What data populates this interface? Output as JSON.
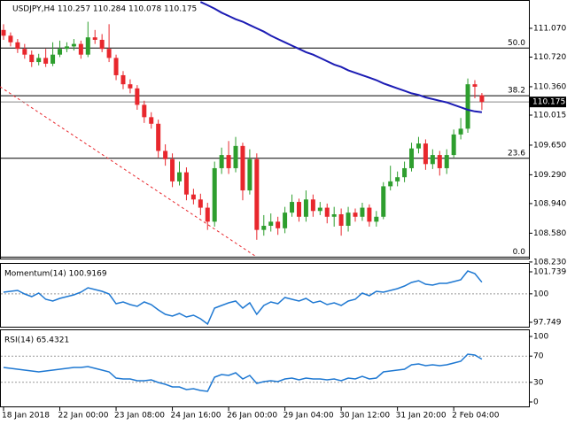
{
  "chart_data": [
    {
      "type": "candlestick",
      "title": "USDJPY,H4  110.257 110.284 110.078 110.175",
      "categories": [
        "18 Jan 2018",
        null,
        null,
        null,
        null,
        null,
        null,
        null,
        "22 Jan 00:00",
        null,
        null,
        null,
        null,
        null,
        null,
        null,
        "23 Jan 08:00",
        null,
        null,
        null,
        null,
        null,
        null,
        null,
        "24 Jan 16:00",
        null,
        null,
        null,
        null,
        null,
        null,
        null,
        "26 Jan 00:00",
        null,
        null,
        null,
        null,
        null,
        null,
        null,
        "29 Jan 04:00",
        null,
        null,
        null,
        null,
        null,
        null,
        null,
        "30 Jan 12:00",
        null,
        null,
        null,
        null,
        null,
        null,
        null,
        "31 Jan 20:00",
        null,
        null,
        null,
        null,
        null,
        null,
        null,
        "2 Feb 04:00",
        null,
        null,
        null,
        null
      ],
      "open": [
        111.05,
        110.98,
        110.9,
        110.82,
        110.75,
        110.66,
        110.71,
        110.64,
        110.75,
        110.82,
        110.85,
        110.88,
        110.75,
        110.96,
        110.93,
        110.82,
        110.71,
        110.5,
        110.39,
        110.34,
        110.14,
        109.99,
        109.91,
        109.58,
        109.48,
        109.21,
        109.32,
        109.05,
        108.99,
        108.89,
        108.72,
        109.37,
        109.53,
        109.37,
        109.64,
        109.1,
        109.48,
        108.62,
        108.67,
        108.72,
        108.64,
        108.83,
        108.96,
        108.78,
        108.99,
        108.85,
        108.89,
        108.78,
        108.81,
        108.67,
        108.83,
        108.78,
        108.89,
        108.72,
        108.78,
        109.15,
        109.21,
        109.26,
        109.37,
        109.61,
        109.67,
        109.42,
        109.53,
        109.37,
        109.53,
        109.78,
        109.85,
        110.39,
        110.257
      ],
      "high": [
        111.12,
        111.02,
        110.94,
        110.88,
        110.8,
        110.76,
        110.82,
        110.9,
        110.92,
        110.9,
        110.94,
        110.92,
        111.15,
        111.05,
        111.0,
        111.12,
        110.75,
        110.55,
        110.45,
        110.38,
        110.19,
        110.05,
        109.96,
        109.66,
        109.55,
        109.45,
        109.38,
        109.12,
        109.06,
        108.95,
        109.45,
        109.62,
        109.7,
        109.75,
        109.68,
        109.6,
        109.55,
        108.8,
        108.82,
        108.78,
        108.9,
        109.05,
        109.0,
        109.1,
        109.05,
        108.96,
        108.94,
        108.9,
        108.88,
        108.9,
        108.88,
        108.95,
        108.93,
        108.85,
        109.2,
        109.4,
        109.33,
        109.45,
        109.68,
        109.75,
        109.72,
        109.6,
        109.58,
        109.6,
        109.84,
        109.98,
        110.46,
        110.44,
        110.284
      ],
      "low": [
        110.93,
        110.85,
        110.77,
        110.7,
        110.6,
        110.62,
        110.6,
        110.61,
        110.72,
        110.78,
        110.8,
        110.7,
        110.72,
        110.88,
        110.78,
        110.66,
        110.44,
        110.33,
        110.28,
        110.08,
        109.92,
        109.85,
        109.5,
        109.4,
        109.14,
        109.16,
        108.98,
        108.93,
        108.8,
        108.62,
        108.66,
        109.3,
        109.3,
        109.32,
        108.98,
        109.05,
        108.5,
        108.55,
        108.6,
        108.56,
        108.58,
        108.78,
        108.72,
        108.72,
        108.78,
        108.8,
        108.7,
        108.66,
        108.55,
        108.6,
        108.72,
        108.73,
        108.66,
        108.66,
        108.75,
        109.1,
        109.15,
        109.2,
        109.33,
        109.55,
        109.35,
        109.36,
        109.28,
        109.3,
        109.5,
        109.72,
        109.8,
        110.22,
        110.078
      ],
      "close": [
        110.98,
        110.9,
        110.82,
        110.75,
        110.66,
        110.71,
        110.64,
        110.75,
        110.82,
        110.85,
        110.88,
        110.75,
        110.96,
        110.93,
        110.82,
        110.71,
        110.5,
        110.39,
        110.34,
        110.14,
        109.99,
        109.91,
        109.58,
        109.48,
        109.21,
        109.32,
        109.05,
        108.99,
        108.89,
        108.72,
        109.37,
        109.53,
        109.37,
        109.64,
        109.1,
        109.48,
        108.62,
        108.67,
        108.72,
        108.64,
        108.83,
        108.96,
        108.78,
        108.99,
        108.85,
        108.89,
        108.78,
        108.81,
        108.67,
        108.83,
        108.78,
        108.89,
        108.72,
        108.78,
        109.15,
        109.21,
        109.26,
        109.37,
        109.61,
        109.67,
        109.42,
        109.53,
        109.37,
        109.53,
        109.78,
        109.85,
        110.39,
        110.36,
        110.175
      ],
      "up_color": "#2e9e2e",
      "down_color": "#e8272d",
      "moving_average": {
        "color": "#1c1cb4",
        "values": [
          null,
          null,
          null,
          null,
          null,
          null,
          null,
          null,
          null,
          null,
          null,
          null,
          null,
          null,
          null,
          null,
          null,
          null,
          null,
          null,
          null,
          null,
          null,
          null,
          null,
          null,
          null,
          null,
          111.39,
          111.35,
          111.31,
          111.26,
          111.22,
          111.18,
          111.15,
          111.11,
          111.07,
          111.03,
          110.98,
          110.94,
          110.9,
          110.86,
          110.82,
          110.78,
          110.75,
          110.71,
          110.67,
          110.63,
          110.6,
          110.56,
          110.53,
          110.5,
          110.47,
          110.44,
          110.4,
          110.37,
          110.34,
          110.31,
          110.28,
          110.26,
          110.23,
          110.21,
          110.19,
          110.17,
          110.14,
          110.11,
          110.08,
          110.06,
          110.05
        ]
      },
      "trendline": {
        "color": "#e8272d",
        "x": [
          -0.5,
          36
        ],
        "values": [
          110.36,
          108.29
        ]
      },
      "levels": [
        {
          "value": 110.83,
          "label": "50.0"
        },
        {
          "value": 110.25,
          "label": "38.2"
        },
        {
          "value": 109.49,
          "label": "23.6"
        },
        {
          "value": 108.29,
          "label": "0.0"
        }
      ],
      "last_price": 110.175,
      "ylim": [
        108.272,
        111.414
      ],
      "yticks": [
        {
          "value": 111.07,
          "label": "111.070"
        },
        {
          "value": 110.72,
          "label": "110.720"
        },
        {
          "value": 110.36,
          "label": "110.360"
        },
        110.015,
        {
          "value": 109.65,
          "label": "109.650"
        },
        {
          "value": 109.29,
          "label": "109.290"
        },
        {
          "value": 108.94,
          "label": "108.940"
        },
        {
          "value": 108.58,
          "label": "108.580"
        },
        {
          "value": 108.23,
          "label": "108.230"
        }
      ]
    },
    {
      "type": "line",
      "title": "Momentum(14) 100.9169",
      "color": "#1e78d2",
      "values": [
        100.13,
        100.2,
        100.27,
        99.99,
        99.78,
        100.06,
        99.57,
        99.43,
        99.64,
        99.78,
        99.92,
        100.13,
        100.48,
        100.34,
        100.2,
        99.99,
        99.22,
        99.36,
        99.15,
        99.01,
        99.36,
        99.15,
        98.73,
        98.38,
        98.24,
        98.45,
        98.17,
        98.31,
        98.03,
        97.61,
        98.87,
        99.08,
        99.29,
        99.43,
        98.87,
        99.29,
        98.38,
        99.08,
        99.36,
        99.22,
        99.71,
        99.57,
        99.43,
        99.64,
        99.29,
        99.43,
        99.15,
        99.29,
        99.08,
        99.43,
        99.57,
        100.06,
        99.85,
        100.2,
        100.13,
        100.27,
        100.41,
        100.62,
        100.9,
        101.04,
        100.76,
        100.69,
        100.83,
        100.83,
        100.97,
        101.11,
        101.81,
        101.6,
        100.9169
      ],
      "levels": [
        100
      ],
      "ylim": [
        97.329,
        102.369
      ],
      "yticks": [
        101.739,
        100,
        97.749
      ]
    },
    {
      "type": "line",
      "title": "RSI(14) 65.4321",
      "color": "#1e78d2",
      "values": [
        52.7,
        51.4,
        50.0,
        48.6,
        47.3,
        45.9,
        47.3,
        48.6,
        50.0,
        51.4,
        52.7,
        52.7,
        54.1,
        51.4,
        48.6,
        45.9,
        36.5,
        35.1,
        35.1,
        32.4,
        32.4,
        33.8,
        29.7,
        27.0,
        23.0,
        23.0,
        18.9,
        20.3,
        17.6,
        16.2,
        37.8,
        41.9,
        40.5,
        44.6,
        35.1,
        40.5,
        28.4,
        31.1,
        32.4,
        31.1,
        35.1,
        36.5,
        33.8,
        36.5,
        35.1,
        35.1,
        33.8,
        35.1,
        32.4,
        36.5,
        35.1,
        39.2,
        35.1,
        36.5,
        45.9,
        47.3,
        48.6,
        50.0,
        56.8,
        58.1,
        55.4,
        56.8,
        55.4,
        56.8,
        59.5,
        62.2,
        73.0,
        71.6,
        65.4321
      ],
      "levels": [
        70,
        30
      ],
      "ylim": [
        -8.1,
        110.8
      ],
      "yticks": [
        100,
        70,
        30,
        0
      ]
    }
  ]
}
